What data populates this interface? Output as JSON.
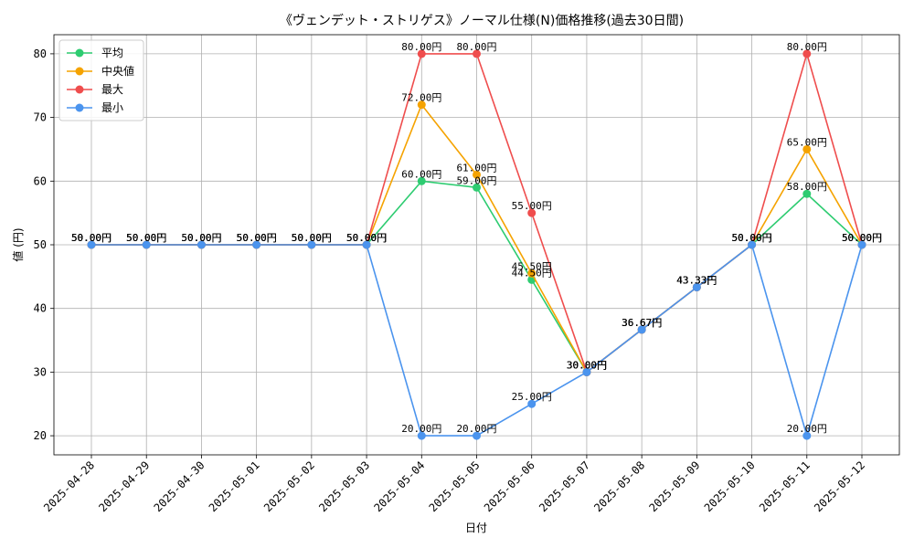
{
  "chart_data": {
    "type": "line",
    "title": "《ヴェンデット・ストリゲス》ノーマル仕様(N)価格推移(過去30日間)",
    "xlabel": "日付",
    "ylabel": "値 (円)",
    "ylim": [
      17,
      83
    ],
    "yticks": [
      20,
      30,
      40,
      50,
      60,
      70,
      80
    ],
    "grid": true,
    "legend_position": "top-left",
    "label_suffix": "円",
    "categories": [
      "2025-04-28",
      "2025-04-29",
      "2025-04-30",
      "2025-05-01",
      "2025-05-02",
      "2025-05-03",
      "2025-05-04",
      "2025-05-05",
      "2025-05-06",
      "2025-05-07",
      "2025-05-08",
      "2025-05-09",
      "2025-05-10",
      "2025-05-11",
      "2025-05-12"
    ],
    "series": [
      {
        "name": "平均",
        "color": "#2ecc71",
        "values": [
          50,
          50,
          50,
          50,
          50,
          50,
          60,
          59,
          44.5,
          30,
          36.67,
          43.33,
          50,
          58,
          50
        ]
      },
      {
        "name": "中央値",
        "color": "#f5a300",
        "values": [
          50,
          50,
          50,
          50,
          50,
          50,
          72,
          61,
          45.5,
          30,
          36.67,
          43.33,
          50,
          65,
          50
        ]
      },
      {
        "name": "最大",
        "color": "#ef4d4d",
        "values": [
          50,
          50,
          50,
          50,
          50,
          50,
          80,
          80,
          55,
          30,
          36.67,
          43.33,
          50,
          80,
          50
        ]
      },
      {
        "name": "最小",
        "color": "#4b94ee",
        "values": [
          50,
          50,
          50,
          50,
          50,
          50,
          20,
          20,
          25,
          30,
          36.67,
          43.33,
          50,
          20,
          50
        ]
      }
    ]
  }
}
